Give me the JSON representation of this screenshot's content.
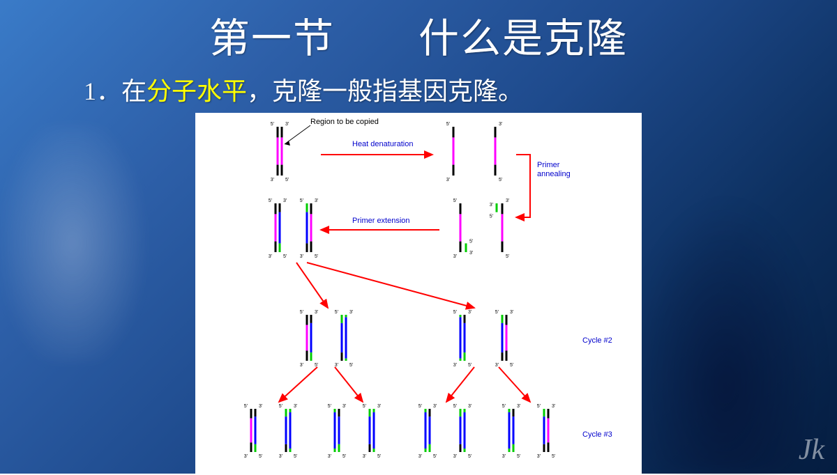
{
  "slide": {
    "title": "第一节　　什么是克隆",
    "subtitle_prefix": "1．在",
    "subtitle_highlight": "分子水平",
    "subtitle_suffix": "，克隆一般指基因克隆。"
  },
  "diagram": {
    "type": "flowchart",
    "background_color": "#ffffff",
    "label_fontsize": 11,
    "tiny_fontsize": 7,
    "label_color_blue": "#0000cc",
    "label_color_black": "#000000",
    "strand_colors": {
      "black": "#000000",
      "magenta": "#ff00ff",
      "blue": "#0000ff",
      "green": "#00cc00"
    },
    "arrow_color": "#ff0000",
    "arrow_width": 2,
    "labels": {
      "region": "Region to be copied",
      "heat": "Heat denaturation",
      "primer_ann": "Primer\nannealing",
      "primer_ext": "Primer extension",
      "cycle2": "Cycle #2",
      "cycle3": "Cycle #3"
    }
  },
  "logo": "Jk"
}
